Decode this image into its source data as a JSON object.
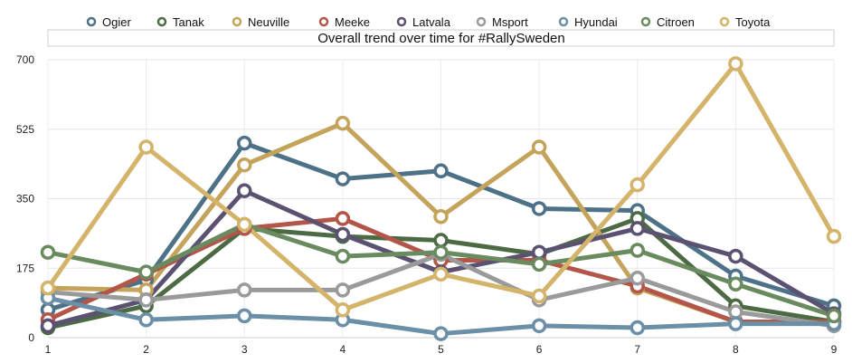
{
  "chart_data": {
    "type": "line",
    "title": "Overall trend over time for #RallySweden",
    "xlabel": "",
    "ylabel": "",
    "x": [
      1,
      2,
      3,
      4,
      5,
      6,
      7,
      8,
      9
    ],
    "ylim": [
      0,
      700
    ],
    "yticks": [
      0,
      175,
      350,
      525,
      700
    ],
    "grid": true,
    "legend_position": "top",
    "series": [
      {
        "name": "Ogier",
        "color": "#4d7186",
        "values": [
          70,
          145,
          490,
          400,
          420,
          325,
          320,
          155,
          80
        ]
      },
      {
        "name": "Tanak",
        "color": "#4c6b45",
        "values": [
          25,
          80,
          275,
          255,
          245,
          210,
          300,
          80,
          40
        ]
      },
      {
        "name": "Neuville",
        "color": "#c4a35a",
        "values": [
          125,
          120,
          435,
          540,
          305,
          480,
          125,
          40,
          40
        ]
      },
      {
        "name": "Meeke",
        "color": "#b35548",
        "values": [
          45,
          160,
          275,
          300,
          195,
          195,
          130,
          40,
          40
        ]
      },
      {
        "name": "Latvala",
        "color": "#5b5272",
        "values": [
          30,
          95,
          370,
          260,
          165,
          215,
          275,
          205,
          60
        ]
      },
      {
        "name": "Msport",
        "color": "#9a9a9a",
        "values": [
          115,
          95,
          120,
          120,
          210,
          95,
          150,
          65,
          30
        ]
      },
      {
        "name": "Hyundai",
        "color": "#6a8fa6",
        "values": [
          100,
          45,
          55,
          45,
          10,
          30,
          25,
          35,
          35
        ]
      },
      {
        "name": "Citroen",
        "color": "#6a8a60",
        "values": [
          215,
          165,
          285,
          205,
          215,
          185,
          220,
          135,
          55
        ]
      },
      {
        "name": "Toyota",
        "color": "#d4b36a",
        "values": [
          125,
          480,
          285,
          70,
          160,
          105,
          385,
          690,
          255
        ]
      }
    ]
  }
}
